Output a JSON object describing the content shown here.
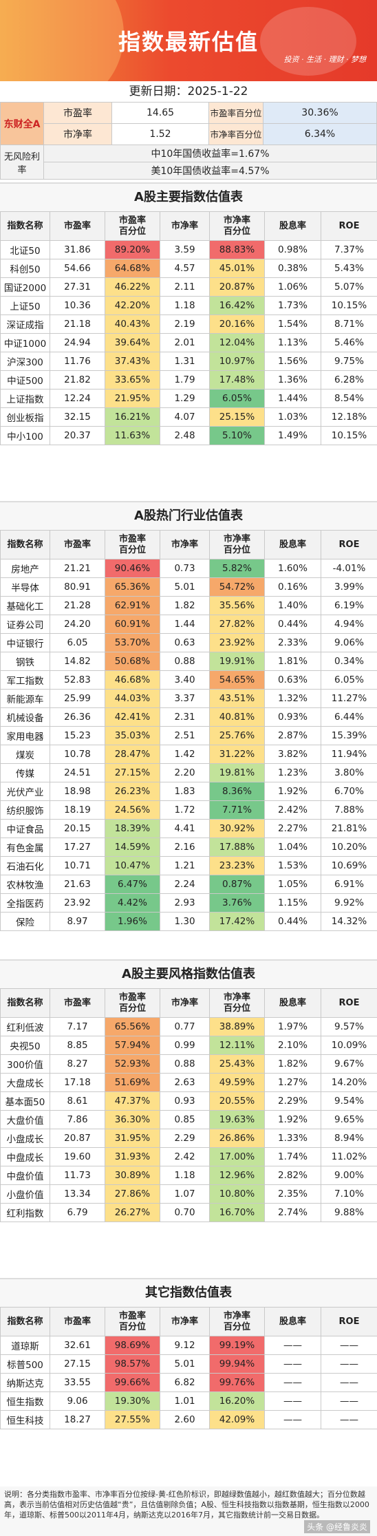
{
  "banner": {
    "title": "指数最新估值",
    "motto": "投资 · 生活 · 理财 · 梦想"
  },
  "date_label": "更新日期：2025-1-22",
  "summary": {
    "market": "东财全A",
    "pe_label": "市盈率",
    "pe": "14.65",
    "pe_pct_label": "市盈率百分位",
    "pe_pct": "30.36%",
    "pb_label": "市净率",
    "pb": "1.52",
    "pb_pct_label": "市净率百分位",
    "pb_pct": "6.34%",
    "rf_label": "无风险利率",
    "cn10": "中10年国债收益率=1.67%",
    "us10": "美10年国债收益率=4.57%"
  },
  "headers": [
    "指数名称",
    "市盈率",
    "市盈率百分位",
    "市净率",
    "市净率百分位",
    "股息率",
    "ROE"
  ],
  "sections": [
    {
      "title": "A股主要指数估值表",
      "rows": [
        [
          "北证50",
          "31.86",
          "89.20%",
          "3.59",
          "88.83%",
          "0.98%",
          "7.37%"
        ],
        [
          "科创50",
          "54.66",
          "64.68%",
          "4.57",
          "45.01%",
          "0.38%",
          "5.43%"
        ],
        [
          "国证2000",
          "27.31",
          "46.22%",
          "2.11",
          "20.87%",
          "1.06%",
          "5.07%"
        ],
        [
          "上证50",
          "10.36",
          "42.20%",
          "1.18",
          "16.42%",
          "1.73%",
          "10.15%"
        ],
        [
          "深证成指",
          "21.18",
          "40.43%",
          "2.19",
          "20.16%",
          "1.54%",
          "8.71%"
        ],
        [
          "中证1000",
          "24.94",
          "39.64%",
          "2.01",
          "12.04%",
          "1.13%",
          "5.46%"
        ],
        [
          "沪深300",
          "11.76",
          "37.43%",
          "1.31",
          "10.97%",
          "1.56%",
          "9.75%"
        ],
        [
          "中证500",
          "21.82",
          "33.65%",
          "1.79",
          "17.48%",
          "1.36%",
          "6.28%"
        ],
        [
          "上证指数",
          "12.24",
          "21.95%",
          "1.29",
          "6.05%",
          "1.44%",
          "8.54%"
        ],
        [
          "创业板指",
          "32.15",
          "16.21%",
          "4.07",
          "25.15%",
          "1.03%",
          "12.18%"
        ],
        [
          "中小100",
          "20.37",
          "11.63%",
          "2.48",
          "5.10%",
          "1.49%",
          "10.15%"
        ]
      ]
    },
    {
      "title": "A股热门行业估值表",
      "rows": [
        [
          "房地产",
          "21.21",
          "90.46%",
          "0.73",
          "5.82%",
          "1.60%",
          "-4.01%"
        ],
        [
          "半导体",
          "80.91",
          "65.36%",
          "5.01",
          "54.72%",
          "0.16%",
          "3.99%"
        ],
        [
          "基础化工",
          "21.28",
          "62.91%",
          "1.82",
          "35.56%",
          "1.40%",
          "6.19%"
        ],
        [
          "证券公司",
          "24.20",
          "60.91%",
          "1.44",
          "27.82%",
          "0.44%",
          "4.94%"
        ],
        [
          "中证银行",
          "6.05",
          "53.70%",
          "0.63",
          "23.92%",
          "2.33%",
          "9.06%"
        ],
        [
          "钢铁",
          "14.82",
          "50.68%",
          "0.88",
          "19.91%",
          "1.81%",
          "0.34%"
        ],
        [
          "军工指数",
          "52.83",
          "46.68%",
          "3.40",
          "54.65%",
          "0.63%",
          "6.05%"
        ],
        [
          "新能源车",
          "25.99",
          "44.03%",
          "3.37",
          "43.51%",
          "1.32%",
          "11.27%"
        ],
        [
          "机械设备",
          "26.36",
          "42.41%",
          "2.31",
          "40.81%",
          "0.93%",
          "6.44%"
        ],
        [
          "家用电器",
          "15.23",
          "35.03%",
          "2.51",
          "25.76%",
          "2.87%",
          "15.39%"
        ],
        [
          "煤炭",
          "10.78",
          "28.47%",
          "1.42",
          "31.22%",
          "3.82%",
          "11.94%"
        ],
        [
          "传媒",
          "24.51",
          "27.15%",
          "2.20",
          "19.81%",
          "1.23%",
          "3.80%"
        ],
        [
          "光伏产业",
          "18.98",
          "26.23%",
          "1.83",
          "8.36%",
          "1.92%",
          "6.70%"
        ],
        [
          "纺织服饰",
          "18.19",
          "24.56%",
          "1.72",
          "7.71%",
          "2.42%",
          "7.88%"
        ],
        [
          "中证食品",
          "20.15",
          "18.39%",
          "4.41",
          "30.92%",
          "2.27%",
          "21.81%"
        ],
        [
          "有色金属",
          "17.27",
          "14.59%",
          "2.16",
          "17.88%",
          "1.04%",
          "10.20%"
        ],
        [
          "石油石化",
          "10.71",
          "10.47%",
          "1.21",
          "23.23%",
          "1.53%",
          "10.69%"
        ],
        [
          "农林牧渔",
          "21.63",
          "6.47%",
          "2.24",
          "0.87%",
          "1.05%",
          "6.91%"
        ],
        [
          "全指医药",
          "23.92",
          "4.42%",
          "2.93",
          "3.76%",
          "1.15%",
          "9.92%"
        ],
        [
          "保险",
          "8.97",
          "1.96%",
          "1.30",
          "17.42%",
          "0.44%",
          "14.32%"
        ]
      ]
    },
    {
      "title": "A股主要风格指数估值表",
      "rows": [
        [
          "红利低波",
          "7.17",
          "65.56%",
          "0.77",
          "38.89%",
          "1.97%",
          "9.57%"
        ],
        [
          "央视50",
          "8.85",
          "57.94%",
          "0.99",
          "12.11%",
          "2.10%",
          "10.09%"
        ],
        [
          "300价值",
          "8.27",
          "52.93%",
          "0.88",
          "25.43%",
          "1.82%",
          "9.67%"
        ],
        [
          "大盘成长",
          "17.18",
          "51.69%",
          "2.63",
          "49.59%",
          "1.27%",
          "14.20%"
        ],
        [
          "基本面50",
          "8.61",
          "47.37%",
          "0.93",
          "20.55%",
          "2.29%",
          "9.54%"
        ],
        [
          "大盘价值",
          "7.86",
          "36.30%",
          "0.85",
          "19.63%",
          "1.92%",
          "9.65%"
        ],
        [
          "小盘成长",
          "20.87",
          "31.95%",
          "2.29",
          "26.86%",
          "1.33%",
          "8.94%"
        ],
        [
          "中盘成长",
          "19.60",
          "31.93%",
          "2.42",
          "17.00%",
          "1.74%",
          "11.02%"
        ],
        [
          "中盘价值",
          "11.73",
          "30.89%",
          "1.18",
          "12.96%",
          "2.82%",
          "9.00%"
        ],
        [
          "小盘价值",
          "13.34",
          "27.86%",
          "1.07",
          "10.80%",
          "2.35%",
          "7.10%"
        ],
        [
          "红利指数",
          "6.79",
          "26.27%",
          "0.70",
          "16.70%",
          "2.74%",
          "9.88%"
        ]
      ]
    },
    {
      "title": "其它指数估值表",
      "rows": [
        [
          "道琼斯",
          "32.61",
          "98.69%",
          "9.12",
          "99.19%",
          "——",
          "——"
        ],
        [
          "标普500",
          "27.15",
          "98.57%",
          "5.01",
          "99.94%",
          "——",
          "——"
        ],
        [
          "纳斯达克",
          "33.55",
          "99.66%",
          "6.82",
          "99.76%",
          "——",
          "——"
        ],
        [
          "恒生指数",
          "9.06",
          "19.30%",
          "1.01",
          "16.20%",
          "——",
          "——"
        ],
        [
          "恒生科技",
          "18.27",
          "27.55%",
          "2.60",
          "42.09%",
          "——",
          "——"
        ]
      ]
    }
  ],
  "footnote": "说明：各分类指数市盈率、市净率百分位按绿-黄-红色阶标识，即越绿数值越小，越红数值越大；百分位数越高，表示当前估值相对历史估值越“贵”，且估值剔除负值；A股、恒生科技指数以指数基期，恒生指数以2000年，道琼斯、标普500以2011年4月，纳斯达克以2016年7月，其它指数统计前一交易日数据。",
  "watermark": "头条 @经鲁炎炎",
  "colors": {
    "red": "#f16b6b",
    "orange": "#f6a86a",
    "yellow": "#fde08a",
    "lightgreen": "#c2e39a",
    "green": "#77c88a"
  }
}
